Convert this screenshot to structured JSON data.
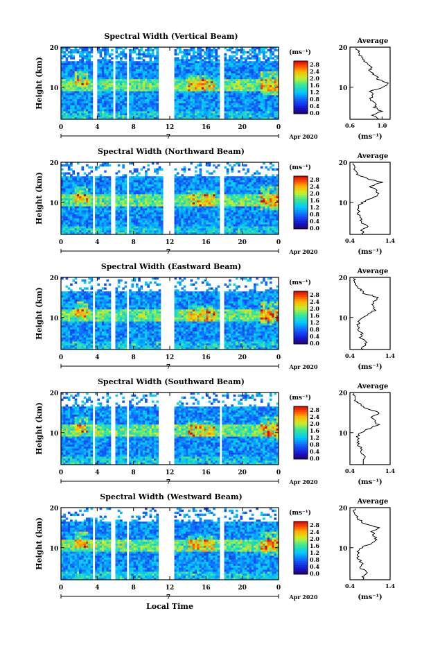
{
  "figure": {
    "xlabel": "Local Time",
    "date_label": "Apr 2020",
    "day_label": "7",
    "colorbar_unit": "(ms⁻¹)",
    "avg_title": "Average",
    "avg_xlabel": "(ms⁻¹)"
  },
  "chart_data": [
    {
      "type": "heatmap",
      "title": "Spectral Width (Vertical Beam)",
      "xlabel": "Local Time",
      "ylabel": "Height (km)",
      "x_ticks": [
        "0",
        "4",
        "8",
        "12",
        "16",
        "20",
        "0"
      ],
      "y_ticks": [
        "20",
        "10"
      ],
      "xlim": [
        0,
        24
      ],
      "ylim": [
        2,
        20
      ],
      "colorbar": {
        "ticks": [
          "2.8",
          "2.4",
          "2.0",
          "1.6",
          "1.2",
          "0.8",
          "0.4",
          "0.0"
        ],
        "range": [
          0.0,
          2.8
        ]
      },
      "gaps_hours": [
        [
          3.6,
          4.0
        ],
        [
          5.7,
          5.9
        ],
        [
          7.3,
          7.5
        ],
        [
          10.8,
          12.6
        ],
        [
          17.6,
          18.0
        ]
      ],
      "average_profile": {
        "xlim": [
          0.6,
          1.1
        ],
        "x_ticks": [
          "0.6",
          "1.0"
        ],
        "y_ticks": [
          "20",
          "10"
        ],
        "height_km": [
          2,
          3,
          4,
          5,
          6,
          7,
          8,
          9,
          10,
          11,
          12,
          13,
          14,
          15,
          16,
          17,
          18,
          19,
          20
        ],
        "value": [
          0.95,
          0.88,
          1.0,
          0.9,
          0.93,
          0.85,
          0.88,
          0.86,
          1.02,
          1.08,
          0.95,
          0.92,
          0.84,
          0.88,
          0.8,
          0.76,
          0.72,
          0.7,
          0.68
        ]
      }
    },
    {
      "type": "heatmap",
      "title": "Spectral Width (Northward Beam)",
      "xlabel": "Local Time",
      "ylabel": "Height (km)",
      "x_ticks": [
        "0",
        "4",
        "8",
        "12",
        "16",
        "20",
        "0"
      ],
      "y_ticks": [
        "20",
        "10"
      ],
      "xlim": [
        0,
        24
      ],
      "ylim": [
        2,
        20
      ],
      "colorbar": {
        "ticks": [
          "2.8",
          "2.4",
          "2.0",
          "1.6",
          "1.2",
          "0.8",
          "0.4",
          "0.0"
        ],
        "range": [
          0.0,
          2.8
        ]
      },
      "gaps_hours": [
        [
          3.4,
          3.7
        ],
        [
          5.6,
          5.9
        ],
        [
          7.3,
          7.5
        ],
        [
          11.2,
          12.6
        ],
        [
          17.6,
          17.9
        ]
      ],
      "average_profile": {
        "xlim": [
          0.4,
          1.4
        ],
        "x_ticks": [
          "0.4",
          "1.4"
        ],
        "y_ticks": [
          "20",
          "10"
        ],
        "height_km": [
          2,
          3,
          4,
          5,
          6,
          7,
          8,
          9,
          10,
          11,
          12,
          13,
          14,
          15,
          16,
          17,
          18,
          19,
          20
        ],
        "value": [
          0.75,
          0.7,
          0.85,
          0.65,
          0.7,
          0.6,
          0.62,
          0.6,
          0.7,
          0.95,
          1.1,
          1.05,
          0.9,
          1.2,
          0.8,
          0.6,
          0.55,
          0.5,
          0.5
        ]
      }
    },
    {
      "type": "heatmap",
      "title": "Spectral Width (Eastward Beam)",
      "xlabel": "Local Time",
      "ylabel": "Height (km)",
      "x_ticks": [
        "0",
        "4",
        "8",
        "12",
        "16",
        "20",
        "0"
      ],
      "y_ticks": [
        "20",
        "10"
      ],
      "xlim": [
        0,
        24
      ],
      "ylim": [
        2,
        20
      ],
      "colorbar": {
        "ticks": [
          "2.8",
          "2.4",
          "2.0",
          "1.6",
          "1.2",
          "0.8",
          "0.4",
          "0.0"
        ],
        "range": [
          0.0,
          2.8
        ]
      },
      "gaps_hours": [
        [
          3.4,
          3.7
        ],
        [
          5.6,
          5.9
        ],
        [
          7.2,
          7.4
        ],
        [
          11.0,
          12.6
        ],
        [
          17.6,
          17.9
        ]
      ],
      "average_profile": {
        "xlim": [
          0.4,
          1.4
        ],
        "x_ticks": [
          "0.4",
          "1.4"
        ],
        "y_ticks": [
          "20",
          "10"
        ],
        "height_km": [
          2,
          3,
          4,
          5,
          6,
          7,
          8,
          9,
          10,
          11,
          12,
          13,
          14,
          15,
          16,
          17,
          18,
          19,
          20
        ],
        "value": [
          0.7,
          0.75,
          0.8,
          0.65,
          0.7,
          0.62,
          0.6,
          0.62,
          0.7,
          0.9,
          1.05,
          0.95,
          1.0,
          1.1,
          0.75,
          0.65,
          0.55,
          0.5,
          0.5
        ]
      }
    },
    {
      "type": "heatmap",
      "title": "Spectral Width (Southward Beam)",
      "xlabel": "Local Time",
      "ylabel": "Height (km)",
      "x_ticks": [
        "0",
        "4",
        "8",
        "12",
        "16",
        "20",
        "0"
      ],
      "y_ticks": [
        "20",
        "10"
      ],
      "xlim": [
        0,
        24
      ],
      "ylim": [
        2,
        20
      ],
      "colorbar": {
        "ticks": [
          "2.8",
          "2.4",
          "2.0",
          "1.6",
          "1.2",
          "0.8",
          "0.4",
          "0.0"
        ],
        "range": [
          0.0,
          2.8
        ]
      },
      "gaps_hours": [
        [
          3.4,
          3.7
        ],
        [
          5.6,
          5.9
        ],
        [
          7.2,
          7.4
        ],
        [
          10.8,
          12.6
        ],
        [
          17.5,
          17.8
        ]
      ],
      "average_profile": {
        "xlim": [
          0.4,
          1.4
        ],
        "x_ticks": [
          "0.4",
          "1.4"
        ],
        "y_ticks": [
          "20",
          "10"
        ],
        "height_km": [
          2,
          3,
          4,
          5,
          6,
          7,
          8,
          9,
          10,
          11,
          12,
          13,
          14,
          15,
          16,
          17,
          18,
          19,
          20
        ],
        "value": [
          0.7,
          0.72,
          0.8,
          0.68,
          0.7,
          0.6,
          0.62,
          0.6,
          0.65,
          0.9,
          1.1,
          1.0,
          0.95,
          1.15,
          0.8,
          0.65,
          0.55,
          0.5,
          0.5
        ]
      }
    },
    {
      "type": "heatmap",
      "title": "Spectral Width (Westward Beam)",
      "xlabel": "Local Time",
      "ylabel": "Height (km)",
      "x_ticks": [
        "0",
        "4",
        "8",
        "12",
        "16",
        "20",
        "0"
      ],
      "y_ticks": [
        "20",
        "10"
      ],
      "xlim": [
        0,
        24
      ],
      "ylim": [
        2,
        20
      ],
      "colorbar": {
        "ticks": [
          "2.8",
          "2.4",
          "2.0",
          "1.6",
          "1.2",
          "0.8",
          "0.4",
          "0.0"
        ],
        "range": [
          0.0,
          2.8
        ]
      },
      "gaps_hours": [
        [
          3.4,
          3.7
        ],
        [
          5.6,
          5.9
        ],
        [
          7.2,
          7.4
        ],
        [
          10.8,
          12.6
        ],
        [
          17.6,
          17.9
        ]
      ],
      "average_profile": {
        "xlim": [
          0.4,
          1.4
        ],
        "x_ticks": [
          "0.4",
          "1.4"
        ],
        "y_ticks": [
          "20",
          "10"
        ],
        "height_km": [
          2,
          3,
          4,
          5,
          6,
          7,
          8,
          9,
          10,
          11,
          12,
          13,
          14,
          15,
          16,
          17,
          18,
          19,
          20
        ],
        "value": [
          0.7,
          0.75,
          0.82,
          0.65,
          0.7,
          0.62,
          0.6,
          0.62,
          0.7,
          0.92,
          1.05,
          1.0,
          0.95,
          1.1,
          0.78,
          0.62,
          0.55,
          0.5,
          0.5
        ]
      }
    }
  ]
}
